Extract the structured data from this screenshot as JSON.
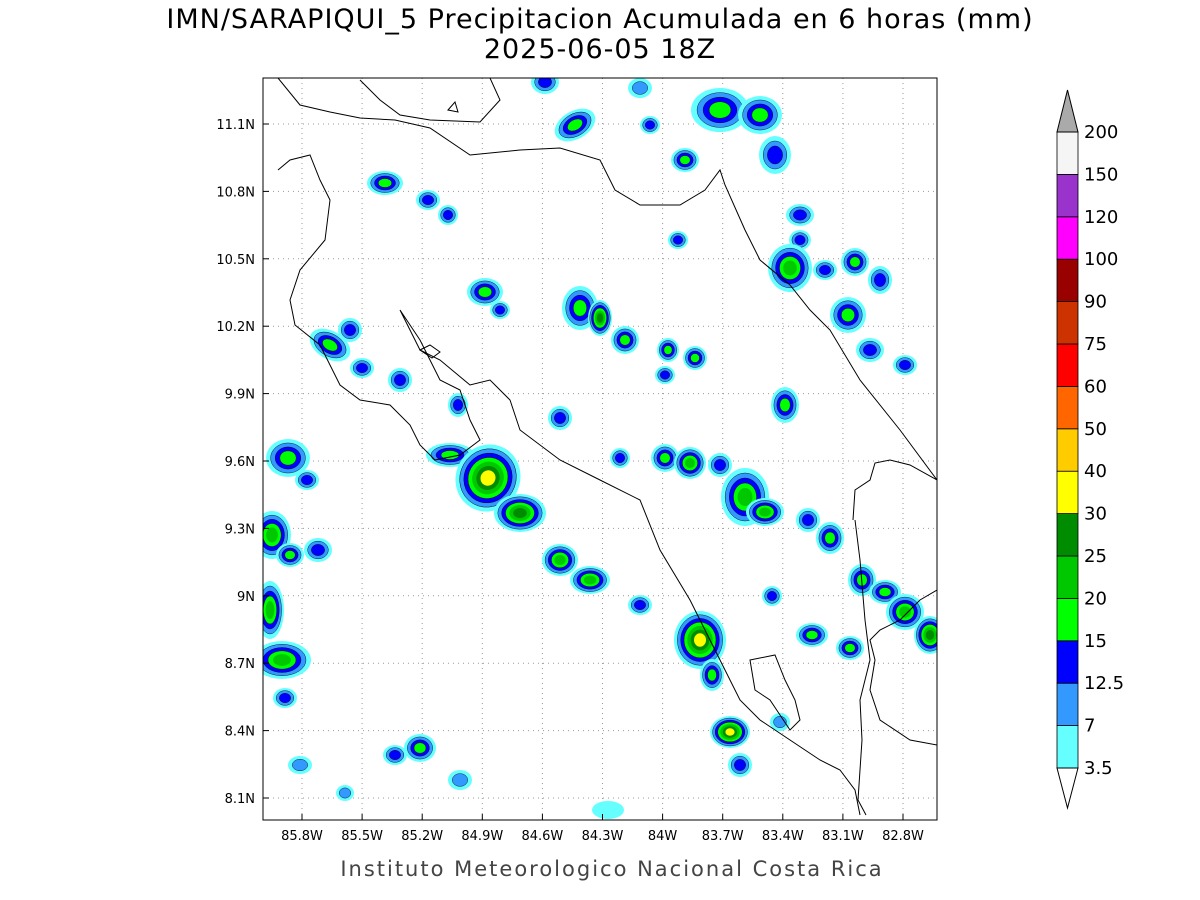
{
  "map": {
    "title": "IMN/SARAPIQUI_5 Precipitacion Acumulada en 6 horas (mm)",
    "subtitle": "2025-06-05 18Z",
    "footer": "Instituto Meteorologico Nacional Costa Rica",
    "lon_ticks": [
      {
        "value": -85.8,
        "label": "85.8W"
      },
      {
        "value": -85.5,
        "label": "85.5W"
      },
      {
        "value": -85.2,
        "label": "85.2W"
      },
      {
        "value": -84.9,
        "label": "84.9W"
      },
      {
        "value": -84.6,
        "label": "84.6W"
      },
      {
        "value": -84.3,
        "label": "84.3W"
      },
      {
        "value": -84.0,
        "label": "84W"
      },
      {
        "value": -83.7,
        "label": "83.7W"
      },
      {
        "value": -83.4,
        "label": "83.4W"
      },
      {
        "value": -83.1,
        "label": "83.1W"
      },
      {
        "value": -82.8,
        "label": "82.8W"
      }
    ],
    "lat_ticks": [
      {
        "value": 11.1,
        "label": "11.1N"
      },
      {
        "value": 10.8,
        "label": "10.8N"
      },
      {
        "value": 10.5,
        "label": "10.5N"
      },
      {
        "value": 10.2,
        "label": "10.2N"
      },
      {
        "value": 9.9,
        "label": "9.9N"
      },
      {
        "value": 9.6,
        "label": "9.6N"
      },
      {
        "value": 9.3,
        "label": "9.3N"
      },
      {
        "value": 9.0,
        "label": "9N"
      },
      {
        "value": 8.7,
        "label": "8.7N"
      },
      {
        "value": 8.4,
        "label": "8.4N"
      },
      {
        "value": 8.1,
        "label": "8.1N"
      }
    ],
    "grid": true,
    "colorbar": {
      "levels": [
        3.5,
        7,
        12.5,
        15,
        20,
        25,
        30,
        40,
        50,
        60,
        75,
        90,
        100,
        120,
        150,
        200
      ],
      "colors": [
        "#66ffff",
        "#3399ff",
        "#0000ff",
        "#00ff00",
        "#00c800",
        "#008c00",
        "#ffff00",
        "#ffcc00",
        "#ff6600",
        "#ff0000",
        "#cc3300",
        "#990000",
        "#ff00ff",
        "#9933cc",
        "#f5f5f5"
      ],
      "under_color": "#ffffff",
      "over_color": "#aaaaaa"
    }
  }
}
